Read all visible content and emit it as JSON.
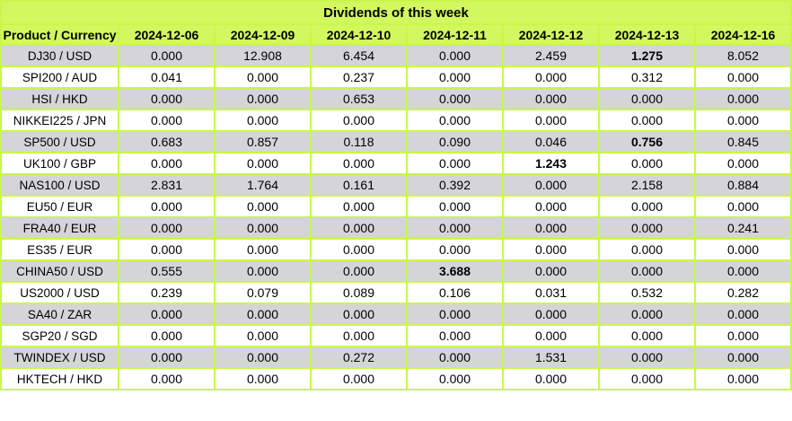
{
  "title": "Dividends of this week",
  "colors": {
    "header_green": "#d3f75e",
    "border_green": "#c9f64b",
    "row_gray": "#d4d4d9",
    "row_white": "#ffffff",
    "text": "#000000"
  },
  "table": {
    "columns": [
      "Product / Currency",
      "2024-12-06",
      "2024-12-09",
      "2024-12-10",
      "2024-12-11",
      "2024-12-12",
      "2024-12-13",
      "2024-12-16"
    ],
    "rows": [
      {
        "product": "DJ30 / USD",
        "values": [
          "0.000",
          "12.908",
          "6.454",
          "0.000",
          "2.459",
          "1.275",
          "8.052"
        ],
        "bold_indices": [
          5
        ]
      },
      {
        "product": "SPI200 / AUD",
        "values": [
          "0.041",
          "0.000",
          "0.237",
          "0.000",
          "0.000",
          "0.312",
          "0.000"
        ],
        "bold_indices": []
      },
      {
        "product": "HSI / HKD",
        "values": [
          "0.000",
          "0.000",
          "0.653",
          "0.000",
          "0.000",
          "0.000",
          "0.000"
        ],
        "bold_indices": []
      },
      {
        "product": "NIKKEI225 / JPN",
        "values": [
          "0.000",
          "0.000",
          "0.000",
          "0.000",
          "0.000",
          "0.000",
          "0.000"
        ],
        "bold_indices": []
      },
      {
        "product": "SP500 / USD",
        "values": [
          "0.683",
          "0.857",
          "0.118",
          "0.090",
          "0.046",
          "0.756",
          "0.845"
        ],
        "bold_indices": [
          5
        ]
      },
      {
        "product": "UK100 / GBP",
        "values": [
          "0.000",
          "0.000",
          "0.000",
          "0.000",
          "1.243",
          "0.000",
          "0.000"
        ],
        "bold_indices": [
          4
        ]
      },
      {
        "product": "NAS100 / USD",
        "values": [
          "2.831",
          "1.764",
          "0.161",
          "0.392",
          "0.000",
          "2.158",
          "0.884"
        ],
        "bold_indices": []
      },
      {
        "product": "EU50 / EUR",
        "values": [
          "0.000",
          "0.000",
          "0.000",
          "0.000",
          "0.000",
          "0.000",
          "0.000"
        ],
        "bold_indices": []
      },
      {
        "product": "FRA40 / EUR",
        "values": [
          "0.000",
          "0.000",
          "0.000",
          "0.000",
          "0.000",
          "0.000",
          "0.241"
        ],
        "bold_indices": []
      },
      {
        "product": "ES35 / EUR",
        "values": [
          "0.000",
          "0.000",
          "0.000",
          "0.000",
          "0.000",
          "0.000",
          "0.000"
        ],
        "bold_indices": []
      },
      {
        "product": "CHINA50 / USD",
        "values": [
          "0.555",
          "0.000",
          "0.000",
          "3.688",
          "0.000",
          "0.000",
          "0.000"
        ],
        "bold_indices": [
          3
        ]
      },
      {
        "product": "US2000 / USD",
        "values": [
          "0.239",
          "0.079",
          "0.089",
          "0.106",
          "0.031",
          "0.532",
          "0.282"
        ],
        "bold_indices": []
      },
      {
        "product": "SA40 / ZAR",
        "values": [
          "0.000",
          "0.000",
          "0.000",
          "0.000",
          "0.000",
          "0.000",
          "0.000"
        ],
        "bold_indices": []
      },
      {
        "product": "SGP20 / SGD",
        "values": [
          "0.000",
          "0.000",
          "0.000",
          "0.000",
          "0.000",
          "0.000",
          "0.000"
        ],
        "bold_indices": []
      },
      {
        "product": "TWINDEX / USD",
        "values": [
          "0.000",
          "0.000",
          "0.272",
          "0.000",
          "1.531",
          "0.000",
          "0.000"
        ],
        "bold_indices": []
      },
      {
        "product": "HKTECH / HKD",
        "values": [
          "0.000",
          "0.000",
          "0.000",
          "0.000",
          "0.000",
          "0.000",
          "0.000"
        ],
        "bold_indices": []
      }
    ]
  }
}
